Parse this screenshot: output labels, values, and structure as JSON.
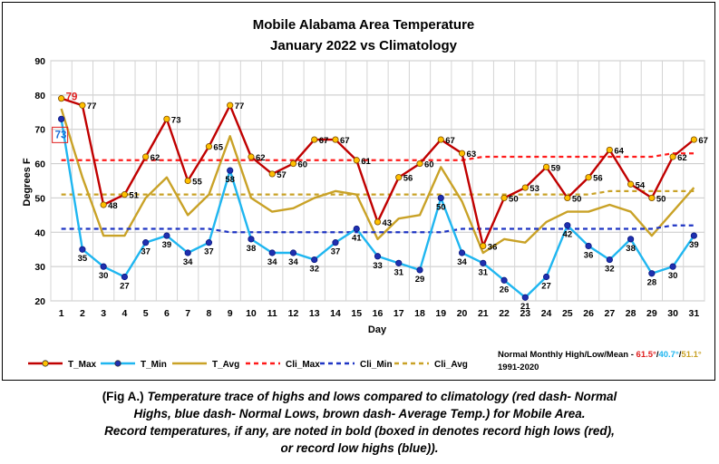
{
  "chart_data": {
    "type": "line",
    "title": [
      "Mobile Alabama Area Temperature",
      "January 2022 vs Climatology"
    ],
    "xlabel": "Day",
    "ylabel": "Degrees F",
    "ylim": [
      20,
      90
    ],
    "yticks": [
      20,
      30,
      40,
      50,
      60,
      70,
      80,
      90
    ],
    "x": [
      1,
      2,
      3,
      4,
      5,
      6,
      7,
      8,
      9,
      10,
      11,
      12,
      13,
      14,
      15,
      16,
      17,
      18,
      19,
      20,
      21,
      22,
      23,
      24,
      25,
      26,
      27,
      28,
      29,
      30,
      31
    ],
    "grid": "horizontal and vertical",
    "legend_position": "bottom",
    "series": [
      {
        "name": "T_Max",
        "color": "#c00000",
        "style": "solid",
        "marker": "circle",
        "marker_fill": "#ffc000",
        "labeled": true,
        "values": [
          79,
          77,
          48,
          51,
          62,
          73,
          55,
          65,
          77,
          62,
          57,
          60,
          67,
          67,
          61,
          43,
          56,
          60,
          67,
          63,
          36,
          50,
          53,
          59,
          50,
          56,
          64,
          54,
          50,
          62,
          67
        ]
      },
      {
        "name": "T_Min",
        "color": "#1fb6f0",
        "style": "solid",
        "marker": "circle",
        "marker_fill": "#1f2fb0",
        "labeled": true,
        "values": [
          73,
          35,
          30,
          27,
          37,
          39,
          34,
          37,
          58,
          38,
          34,
          34,
          32,
          37,
          41,
          33,
          31,
          29,
          50,
          34,
          31,
          26,
          21,
          27,
          42,
          36,
          32,
          38,
          28,
          30,
          39
        ]
      },
      {
        "name": "T_Avg",
        "color": "#c9a227",
        "style": "solid",
        "marker": "none",
        "labeled": false,
        "values": [
          76,
          56,
          39,
          39,
          50,
          56,
          45,
          51,
          68,
          50,
          46,
          47,
          50,
          52,
          51,
          38,
          44,
          45,
          59,
          49,
          34,
          38,
          37,
          43,
          46,
          46,
          48,
          46,
          39,
          46,
          53
        ]
      },
      {
        "name": "Cli_Max",
        "color": "#ff1a1a",
        "style": "dashed",
        "marker": "none",
        "labeled": false,
        "values": [
          61,
          61,
          61,
          61,
          61,
          61,
          61,
          61,
          61,
          61,
          61,
          61,
          61,
          61,
          61,
          61,
          61,
          61,
          61,
          61,
          62,
          62,
          62,
          62,
          62,
          62,
          62,
          62,
          62,
          63,
          63
        ]
      },
      {
        "name": "Cli_Min",
        "color": "#1f35c4",
        "style": "dashed",
        "marker": "none",
        "labeled": false,
        "values": [
          41,
          41,
          41,
          41,
          41,
          41,
          41,
          41,
          40,
          40,
          40,
          40,
          40,
          40,
          40,
          40,
          40,
          40,
          40,
          41,
          41,
          41,
          41,
          41,
          41,
          41,
          41,
          41,
          41,
          42,
          42
        ]
      },
      {
        "name": "Cli_Avg",
        "color": "#c9a227",
        "style": "dashed",
        "marker": "none",
        "labeled": false,
        "values": [
          51,
          51,
          51,
          51,
          51,
          51,
          51,
          51,
          51,
          51,
          51,
          51,
          51,
          51,
          51,
          51,
          51,
          51,
          51,
          51,
          51,
          51,
          51,
          51,
          51,
          51,
          52,
          52,
          52,
          52,
          52
        ]
      }
    ],
    "boxed_labels": [
      {
        "series": "T_Max",
        "day": 1,
        "text": "79",
        "color": "#e02020"
      },
      {
        "series": "T_Min",
        "day": 1,
        "text": "73",
        "color": "#1f6fd8"
      }
    ],
    "note": {
      "prefix": "Normal Monthly High/Low/Mean - ",
      "high": "61.5°",
      "high_color": "#e02020",
      "low": "40.7°",
      "low_color": "#1fb6f0",
      "mean": "51.1°",
      "mean_color": "#c9a227",
      "sep": "/",
      "years": "1991-2020"
    }
  },
  "caption": {
    "line1_prefix": "(Fig A.) ",
    "line1": "Temperature trace of highs and lows compared to climatology (red dash- Normal",
    "line2": "Highs, blue dash- Normal Lows, brown dash- Average Temp.) for Mobile Area.",
    "line3": "Record temperatures, if any, are noted in bold (boxed in denotes record high lows (red),",
    "line4": "or record low highs (blue))."
  }
}
